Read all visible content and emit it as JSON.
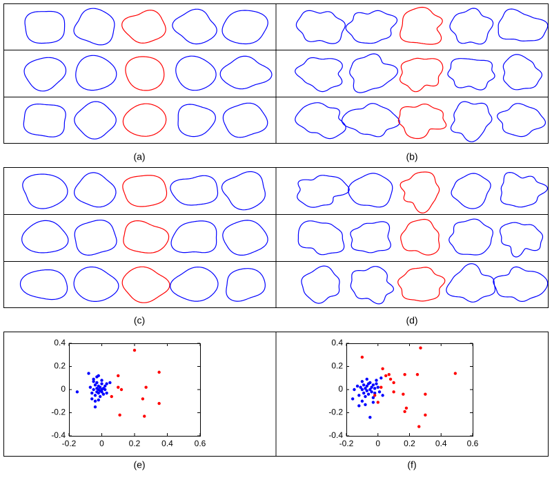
{
  "panels": [
    {
      "label": "(a)"
    },
    {
      "label": "(b)"
    },
    {
      "label": "(c)"
    },
    {
      "label": "(d)"
    },
    {
      "label": "(e)"
    },
    {
      "label": "(f)"
    }
  ],
  "chart_data": [
    {
      "type": "scatter",
      "xlim": [
        -0.2,
        0.6
      ],
      "ylim": [
        -0.4,
        0.4
      ],
      "xticks": [
        -0.2,
        0,
        0.2,
        0.4,
        0.6
      ],
      "yticks": [
        0.4,
        0.2,
        0,
        -0.2,
        -0.4
      ],
      "series": [
        {
          "color": "#0000ff",
          "x": [
            -0.15,
            -0.08,
            -0.07,
            -0.06,
            -0.05,
            -0.05,
            -0.04,
            -0.04,
            -0.03,
            -0.03,
            -0.03,
            -0.02,
            -0.02,
            -0.02,
            -0.01,
            -0.01,
            -0.01,
            0,
            0,
            0,
            0.01,
            0.01,
            0.02,
            0.02,
            -0.06,
            -0.04,
            -0.02,
            0.03,
            -0.05,
            -0.03,
            0.0,
            0.03,
            -0.04,
            -0.02,
            0.05
          ],
          "y": [
            -0.02,
            0.14,
            0.02,
            -0.03,
            0.07,
            0.0,
            -0.05,
            0.04,
            0.01,
            -0.02,
            0.06,
            0.0,
            -0.03,
            0.03,
            -0.01,
            0.02,
            -0.06,
            0.0,
            0.05,
            -0.02,
            0.01,
            -0.04,
            0.03,
            0.0,
            -0.08,
            -0.15,
            -0.09,
            -0.03,
            0.09,
            0.11,
            0.08,
            0.05,
            -0.1,
            0.12,
            0.06
          ]
        },
        {
          "color": "#ff0000",
          "x": [
            0.2,
            0.35,
            0.1,
            0.27,
            0.1,
            0.06,
            0.25,
            0.35,
            0.11,
            0.26,
            0.12
          ],
          "y": [
            0.34,
            0.15,
            0.12,
            0.02,
            0.02,
            -0.06,
            -0.08,
            -0.12,
            -0.22,
            -0.23,
            0.0
          ]
        }
      ]
    },
    {
      "type": "scatter",
      "xlim": [
        -0.2,
        0.6
      ],
      "ylim": [
        -0.4,
        0.4
      ],
      "xticks": [
        -0.2,
        0,
        0.2,
        0.4,
        0.6
      ],
      "yticks": [
        0.4,
        0.2,
        0,
        -0.2,
        -0.4
      ],
      "series": [
        {
          "color": "#0000ff",
          "x": [
            -0.16,
            -0.13,
            -0.12,
            -0.11,
            -0.1,
            -0.1,
            -0.09,
            -0.09,
            -0.08,
            -0.08,
            -0.07,
            -0.07,
            -0.06,
            -0.06,
            -0.05,
            -0.05,
            -0.04,
            -0.04,
            -0.03,
            -0.03,
            -0.02,
            -0.02,
            -0.01,
            0,
            0.01,
            -0.12,
            -0.08,
            -0.05,
            -0.1,
            -0.03,
            0.02,
            -0.07,
            -0.15,
            -0.01,
            0.03
          ],
          "y": [
            -0.08,
            0.03,
            -0.05,
            0.02,
            0.0,
            -0.1,
            0.04,
            -0.03,
            0.01,
            -0.06,
            0.03,
            -0.01,
            0.05,
            -0.04,
            0.0,
            0.06,
            -0.02,
            0.02,
            0.04,
            -0.07,
            0.01,
            -0.03,
            0.05,
            0.02,
            -0.02,
            -0.14,
            -0.13,
            -0.24,
            0.07,
            -0.11,
            0.1,
            0.09,
            0.0,
            0.08,
            -0.05
          ]
        },
        {
          "color": "#ff0000",
          "x": [
            0.27,
            0.49,
            0.17,
            0.25,
            0.3,
            0.16,
            0.3,
            0.18,
            0.17,
            0.26,
            0.1,
            0.05,
            0.08,
            0.03,
            0.07,
            -0.1,
            0.02,
            -0.02,
            0.1,
            0.0
          ],
          "y": [
            0.36,
            0.14,
            0.13,
            0.13,
            -0.04,
            -0.04,
            -0.22,
            -0.16,
            -0.19,
            -0.32,
            0.06,
            0.12,
            0.09,
            0.18,
            0.13,
            0.28,
            0.02,
            -0.05,
            -0.02,
            -0.11
          ]
        }
      ]
    }
  ]
}
